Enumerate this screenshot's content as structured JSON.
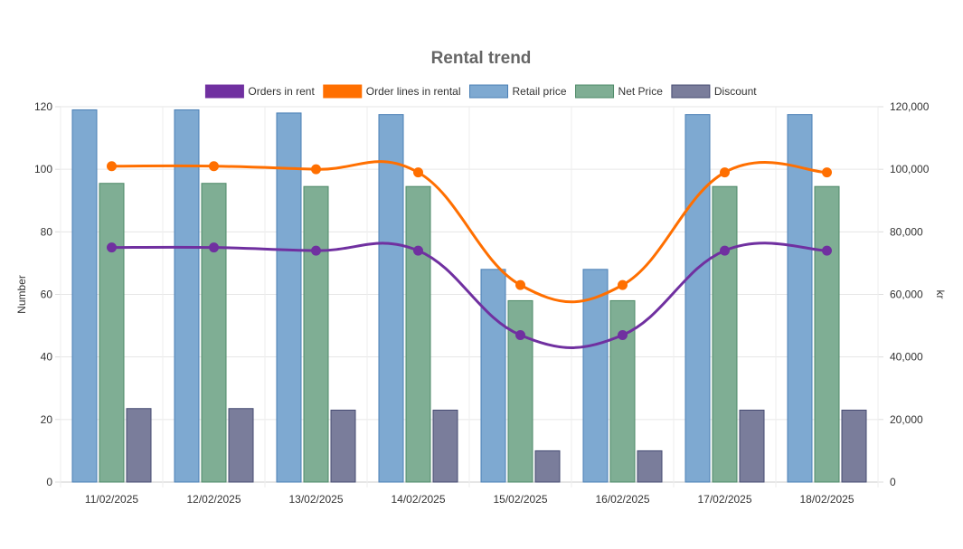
{
  "chart_data": {
    "type": "bar",
    "title": "Rental trend",
    "categories": [
      "11/02/2025",
      "12/02/2025",
      "13/02/2025",
      "14/02/2025",
      "15/02/2025",
      "16/02/2025",
      "17/02/2025",
      "18/02/2025"
    ],
    "y_left": {
      "label": "Number",
      "min": 0,
      "max": 120,
      "ticks": [
        "0",
        "20",
        "40",
        "60",
        "80",
        "100",
        "120"
      ]
    },
    "y_right": {
      "label": "kr",
      "min": 0,
      "max": 120000,
      "ticks": [
        "0",
        "20,000",
        "40,000",
        "60,000",
        "80,000",
        "100,000",
        "120,000"
      ]
    },
    "grid": true,
    "legend_position": "top",
    "series": [
      {
        "name": "Orders in rent",
        "type": "line",
        "axis": "left",
        "color": "#7030a0",
        "values": [
          75,
          75,
          74,
          74,
          47,
          47,
          74,
          74
        ]
      },
      {
        "name": "Order lines  in rental",
        "type": "line",
        "axis": "left",
        "color": "#ff6f00",
        "values": [
          101,
          101,
          100,
          99,
          63,
          63,
          99,
          99
        ]
      },
      {
        "name": "Retail price",
        "type": "bar",
        "axis": "right",
        "color": "#7ea9d1",
        "border": "#4a7fb5",
        "values": [
          119000,
          119000,
          118000,
          117500,
          68000,
          68000,
          117500,
          117500
        ]
      },
      {
        "name": "Net Price",
        "type": "bar",
        "axis": "right",
        "color": "#7fae94",
        "border": "#4e8a68",
        "values": [
          95500,
          95500,
          94500,
          94500,
          58000,
          58000,
          94500,
          94500
        ]
      },
      {
        "name": "Discount",
        "type": "bar",
        "axis": "right",
        "color": "#7a7d9b",
        "border": "#454b72",
        "values": [
          23500,
          23500,
          23000,
          23000,
          10000,
          10000,
          23000,
          23000
        ]
      }
    ]
  }
}
